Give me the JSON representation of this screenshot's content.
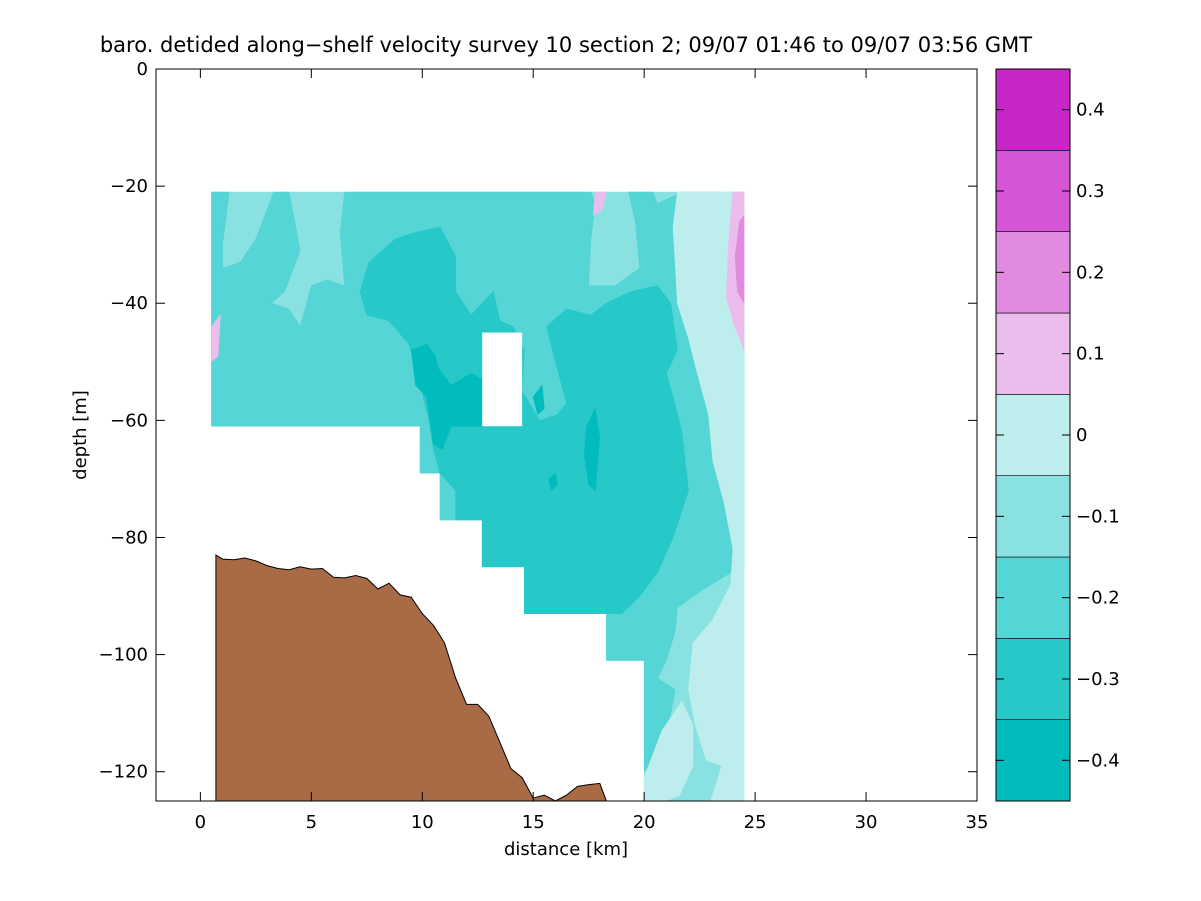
{
  "chart_data": {
    "type": "contour",
    "title": "baro. detided along−shelf velocity survey 10 section 2; 09/07 01:46 to 09/07 03:56 GMT",
    "xlabel": "distance [km]",
    "ylabel": "depth [m]",
    "xlim": [
      -2,
      35
    ],
    "ylim": [
      -125,
      0
    ],
    "xticks": [
      0,
      5,
      10,
      15,
      20,
      25,
      30,
      35
    ],
    "xtick_labels": [
      "0",
      "5",
      "10",
      "15",
      "20",
      "25",
      "30",
      "35"
    ],
    "yticks": [
      0,
      -20,
      -40,
      -60,
      -80,
      -100,
      -120
    ],
    "ytick_labels": [
      "0",
      "−20",
      "−40",
      "−60",
      "−80",
      "−100",
      "−120"
    ],
    "grid": false,
    "colorbar": {
      "range": [
        -0.45,
        0.45
      ],
      "levels": [
        -0.45,
        -0.35,
        -0.25,
        -0.15,
        -0.05,
        0.05,
        0.15,
        0.25,
        0.35,
        0.45
      ],
      "colors": [
        "#00bcbc",
        "#26c8c8",
        "#55d5d5",
        "#8ae1e1",
        "#bdeded",
        "#ecbdec",
        "#e08ae0",
        "#d555d5",
        "#c826c8",
        "#bc00bc"
      ],
      "ticks": [
        -0.4,
        -0.3,
        -0.2,
        -0.1,
        0,
        0.1,
        0.2,
        0.3,
        0.4
      ],
      "tick_labels": [
        "−0.4",
        "−0.3",
        "−0.2",
        "−0.1",
        "0",
        "0.1",
        "0.2",
        "0.3",
        "0.4"
      ]
    },
    "bathymetry_color": "#a96b46",
    "bathymetry": [
      [
        0.7,
        -83
      ],
      [
        1.0,
        -83.7
      ],
      [
        1.5,
        -83.8
      ],
      [
        2.0,
        -83.5
      ],
      [
        2.5,
        -84
      ],
      [
        3.0,
        -84.8
      ],
      [
        3.5,
        -85.3
      ],
      [
        4.0,
        -85.5
      ],
      [
        4.5,
        -85
      ],
      [
        5.0,
        -85.4
      ],
      [
        5.5,
        -85.3
      ],
      [
        6.0,
        -86.8
      ],
      [
        6.5,
        -86.9
      ],
      [
        7.0,
        -86.5
      ],
      [
        7.5,
        -87
      ],
      [
        8.0,
        -88.8
      ],
      [
        8.5,
        -87.8
      ],
      [
        9.0,
        -89.8
      ],
      [
        9.5,
        -90.2
      ],
      [
        10.0,
        -93
      ],
      [
        10.5,
        -95
      ],
      [
        11.0,
        -98
      ],
      [
        11.5,
        -104
      ],
      [
        12.0,
        -108.5
      ],
      [
        12.5,
        -108.5
      ],
      [
        13.0,
        -110.5
      ],
      [
        13.5,
        -115
      ],
      [
        14.0,
        -119.5
      ],
      [
        14.5,
        -121
      ],
      [
        15.0,
        -124.5
      ],
      [
        15.5,
        -124
      ],
      [
        16.0,
        -125
      ],
      [
        16.5,
        -124
      ],
      [
        17.0,
        -122.5
      ],
      [
        17.5,
        -122.2
      ],
      [
        18.0,
        -122
      ],
      [
        18.3,
        -125
      ]
    ],
    "field_regions": [
      {
        "value": -0.1,
        "outline": [
          [
            0.5,
            -21
          ],
          [
            24.5,
            -21
          ],
          [
            24.5,
            -125
          ],
          [
            20.0,
            -125
          ],
          [
            20.0,
            -101
          ],
          [
            18.3,
            -101
          ],
          [
            18.3,
            -93
          ],
          [
            14.6,
            -93
          ],
          [
            14.6,
            -85
          ],
          [
            12.7,
            -85
          ],
          [
            12.7,
            -77
          ],
          [
            10.8,
            -77
          ],
          [
            10.8,
            -69
          ],
          [
            9.9,
            -69
          ],
          [
            9.9,
            -61
          ],
          [
            0.5,
            -61
          ]
        ]
      },
      {
        "value": -0.2,
        "outline": [
          [
            0.5,
            -21
          ],
          [
            1.3,
            -21
          ],
          [
            1.0,
            -30
          ],
          [
            1.0,
            -34
          ],
          [
            1.8,
            -33
          ],
          [
            2.5,
            -29
          ],
          [
            3.3,
            -21
          ],
          [
            4.0,
            -21
          ],
          [
            4.3,
            -27
          ],
          [
            4.5,
            -31
          ],
          [
            3.8,
            -38
          ],
          [
            3.2,
            -40
          ],
          [
            4.0,
            -41
          ],
          [
            4.5,
            -44
          ],
          [
            5.0,
            -37
          ],
          [
            5.7,
            -36
          ],
          [
            6.5,
            -37
          ],
          [
            6.3,
            -28
          ],
          [
            6.5,
            -21
          ],
          [
            17.6,
            -21
          ],
          [
            17.8,
            -23
          ],
          [
            17.6,
            -29
          ],
          [
            17.5,
            -37
          ],
          [
            18.7,
            -37
          ],
          [
            19.8,
            -34
          ],
          [
            19.6,
            -26
          ],
          [
            19.3,
            -21
          ],
          [
            20.4,
            -21
          ],
          [
            20.6,
            -23
          ],
          [
            21.7,
            -21
          ],
          [
            23.4,
            -21
          ],
          [
            23.4,
            -27
          ],
          [
            23.9,
            -33
          ],
          [
            24.5,
            -40
          ],
          [
            24.5,
            -85
          ],
          [
            23.9,
            -86
          ],
          [
            22.6,
            -89
          ],
          [
            21.5,
            -92
          ],
          [
            21.4,
            -96
          ],
          [
            21.0,
            -101
          ],
          [
            20.6,
            -104
          ],
          [
            21.4,
            -106
          ],
          [
            21.0,
            -114
          ],
          [
            20.0,
            -120
          ],
          [
            20.0,
            -101
          ],
          [
            18.3,
            -101
          ],
          [
            18.3,
            -93
          ],
          [
            14.6,
            -93
          ],
          [
            14.6,
            -85
          ],
          [
            12.7,
            -85
          ],
          [
            12.7,
            -77
          ],
          [
            10.8,
            -77
          ],
          [
            10.8,
            -69
          ],
          [
            9.9,
            -69
          ],
          [
            9.9,
            -61
          ],
          [
            0.5,
            -61
          ]
        ]
      },
      {
        "value": -0.3,
        "outline": [
          [
            7.6,
            -33
          ],
          [
            8.8,
            -29
          ],
          [
            9.6,
            -28
          ],
          [
            10.8,
            -27
          ],
          [
            11.5,
            -32
          ],
          [
            11.5,
            -38
          ],
          [
            12.2,
            -42
          ],
          [
            13.2,
            -38
          ],
          [
            13.5,
            -43
          ],
          [
            14.1,
            -44
          ],
          [
            14.6,
            -48
          ],
          [
            14.5,
            -55
          ],
          [
            15.3,
            -60
          ],
          [
            16.1,
            -59
          ],
          [
            16.5,
            -57
          ],
          [
            16.0,
            -50
          ],
          [
            15.6,
            -44
          ],
          [
            16.5,
            -41
          ],
          [
            17.6,
            -42
          ],
          [
            18.3,
            -40
          ],
          [
            19.4,
            -38
          ],
          [
            20.6,
            -37
          ],
          [
            21.2,
            -40
          ],
          [
            21.5,
            -48
          ],
          [
            21.0,
            -52
          ],
          [
            21.3,
            -56
          ],
          [
            21.7,
            -62
          ],
          [
            22.0,
            -72
          ],
          [
            21.3,
            -80
          ],
          [
            20.6,
            -86
          ],
          [
            19.8,
            -90
          ],
          [
            19.0,
            -93
          ],
          [
            18.3,
            -93
          ],
          [
            14.6,
            -93
          ],
          [
            14.6,
            -85
          ],
          [
            12.7,
            -85
          ],
          [
            12.7,
            -77
          ],
          [
            11.5,
            -77
          ],
          [
            11.5,
            -72
          ],
          [
            10.8,
            -69
          ],
          [
            10.5,
            -65
          ],
          [
            10.3,
            -60
          ],
          [
            9.8,
            -52
          ],
          [
            9.4,
            -47
          ],
          [
            8.5,
            -43
          ],
          [
            7.5,
            -42
          ],
          [
            7.2,
            -38
          ]
        ]
      },
      {
        "value": -0.4,
        "outline": [
          [
            9.5,
            -48
          ],
          [
            10.2,
            -47
          ],
          [
            10.6,
            -49
          ],
          [
            10.7,
            -51
          ],
          [
            11.3,
            -54
          ],
          [
            12.2,
            -52
          ],
          [
            12.7,
            -53
          ],
          [
            12.7,
            -61
          ],
          [
            11.3,
            -61
          ],
          [
            10.9,
            -65
          ],
          [
            10.5,
            -64
          ],
          [
            10.2,
            -56
          ],
          [
            9.7,
            -54
          ]
        ]
      },
      {
        "value": -0.4,
        "outline": [
          [
            17.4,
            -61
          ],
          [
            17.8,
            -58
          ],
          [
            18.0,
            -63
          ],
          [
            17.8,
            -72
          ],
          [
            17.5,
            -71
          ],
          [
            17.3,
            -66
          ]
        ]
      },
      {
        "value": -0.4,
        "outline": [
          [
            15.0,
            -56
          ],
          [
            15.4,
            -54
          ],
          [
            15.5,
            -58
          ],
          [
            15.2,
            -59
          ]
        ]
      },
      {
        "value": -0.4,
        "outline": [
          [
            15.7,
            -70
          ],
          [
            16.0,
            -69
          ],
          [
            16.1,
            -71
          ],
          [
            15.8,
            -72
          ]
        ]
      },
      {
        "value": 0.0,
        "outline": [
          [
            21.5,
            -21
          ],
          [
            24.5,
            -21
          ],
          [
            24.5,
            -125
          ],
          [
            23.0,
            -125
          ],
          [
            23.5,
            -119
          ],
          [
            22.8,
            -118
          ],
          [
            22.3,
            -112
          ],
          [
            22.0,
            -106
          ],
          [
            22.2,
            -98
          ],
          [
            23.1,
            -94
          ],
          [
            23.9,
            -88
          ],
          [
            24.0,
            -82
          ],
          [
            23.6,
            -74
          ],
          [
            23.1,
            -67
          ],
          [
            22.9,
            -59
          ],
          [
            22.4,
            -52
          ],
          [
            22.0,
            -46
          ],
          [
            21.5,
            -40
          ],
          [
            21.4,
            -33
          ],
          [
            21.3,
            -27
          ]
        ]
      },
      {
        "value": 0.0,
        "outline": [
          [
            20.8,
            -113
          ],
          [
            21.7,
            -108
          ],
          [
            22.2,
            -112
          ],
          [
            22.2,
            -119
          ],
          [
            21.6,
            -124
          ],
          [
            21.0,
            -125
          ],
          [
            20.0,
            -125
          ],
          [
            20.0,
            -121
          ]
        ]
      },
      {
        "value": 0.1,
        "outline": [
          [
            24.0,
            -21
          ],
          [
            24.5,
            -21
          ],
          [
            24.5,
            -48
          ],
          [
            24.0,
            -43
          ],
          [
            23.7,
            -39
          ],
          [
            23.8,
            -30
          ]
        ]
      },
      {
        "value": 0.1,
        "outline": [
          [
            17.8,
            -21
          ],
          [
            18.3,
            -21
          ],
          [
            18.1,
            -24
          ],
          [
            17.7,
            -25
          ]
        ]
      },
      {
        "value": 0.1,
        "outline": [
          [
            0.5,
            -44
          ],
          [
            0.9,
            -42
          ],
          [
            0.8,
            -49
          ],
          [
            0.5,
            -50
          ]
        ]
      },
      {
        "value": 0.2,
        "outline": [
          [
            24.3,
            -26
          ],
          [
            24.5,
            -25
          ],
          [
            24.5,
            -40
          ],
          [
            24.2,
            -38
          ],
          [
            24.1,
            -32
          ]
        ]
      }
    ],
    "no_data_box": {
      "x": [
        12.7,
        14.5
      ],
      "y": [
        -61,
        -45
      ]
    }
  }
}
